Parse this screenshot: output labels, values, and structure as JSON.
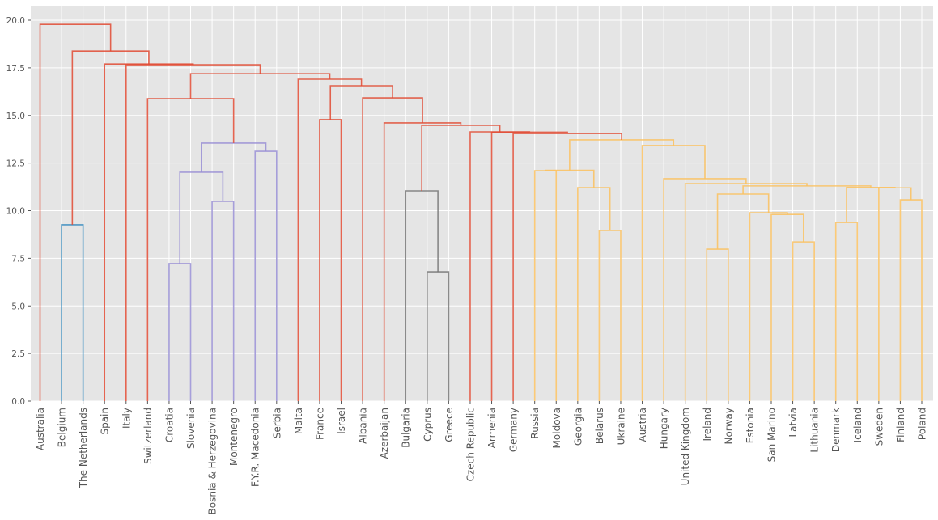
{
  "chart_data": {
    "type": "dendrogram",
    "title": "",
    "xlabel": "",
    "ylabel": "",
    "ylim": [
      0,
      20.7
    ],
    "yticks": [
      "0.0",
      "2.5",
      "5.0",
      "7.5",
      "10.0",
      "12.5",
      "15.0",
      "17.5",
      "20.0"
    ],
    "ytick_values": [
      0,
      2.5,
      5,
      7.5,
      10,
      12.5,
      15,
      17.5,
      20
    ],
    "grid": true,
    "background": "#e5e5e5",
    "colors": {
      "red": "#e24a33",
      "blue": "#348abd",
      "purple": "#988ed5",
      "gray": "#777777",
      "yellow": "#fbc15e"
    },
    "leaves": [
      "Australia",
      "Belgium",
      "The Netherlands",
      "Spain",
      "Italy",
      "Switzerland",
      "Croatia",
      "Slovenia",
      "Bosnia & Herzegovina",
      "Montenegro",
      "F.Y.R. Macedonia",
      "Serbia",
      "Malta",
      "France",
      "Israel",
      "Albania",
      "Azerbaijan",
      "Bulgaria",
      "Cyprus",
      "Greece",
      "Czech Republic",
      "Armenia",
      "Germany",
      "Russia",
      "Moldova",
      "Georgia",
      "Belarus",
      "Ukraine",
      "Austria",
      "Hungary",
      "United Kingdom",
      "Ireland",
      "Norway",
      "Estonia",
      "San Marino",
      "Latvia",
      "Lithuania",
      "Denmark",
      "Iceland",
      "Sweden",
      "Finland",
      "Poland"
    ],
    "merges": [
      {
        "id": "m1",
        "left": "L1",
        "right": "L2",
        "height": 9.26,
        "color": "blue"
      },
      {
        "id": "m2",
        "left": "L6",
        "right": "L7",
        "height": 7.22,
        "color": "purple"
      },
      {
        "id": "m3",
        "left": "L8",
        "right": "L9",
        "height": 10.49,
        "color": "purple"
      },
      {
        "id": "m4",
        "left": "m2",
        "right": "m3",
        "height": 12.02,
        "color": "purple"
      },
      {
        "id": "m5",
        "left": "L10",
        "right": "L11",
        "height": 13.12,
        "color": "purple"
      },
      {
        "id": "m6",
        "left": "m4",
        "right": "m5",
        "height": 13.55,
        "color": "purple"
      },
      {
        "id": "m7",
        "left": "L5",
        "right": "m6",
        "height": 15.88,
        "color": "red"
      },
      {
        "id": "m8",
        "left": "L13",
        "right": "L14",
        "height": 14.78,
        "color": "red"
      },
      {
        "id": "m9",
        "left": "L18",
        "right": "L19",
        "height": 6.79,
        "color": "gray"
      },
      {
        "id": "m10",
        "left": "L17",
        "right": "m9",
        "height": 11.04,
        "color": "gray"
      },
      {
        "id": "m11",
        "left": "L26",
        "right": "L27",
        "height": 8.96,
        "color": "yellow"
      },
      {
        "id": "m12",
        "left": "L25",
        "right": "m11",
        "height": 11.21,
        "color": "yellow"
      },
      {
        "id": "m13",
        "left": "L23",
        "right": "L24",
        "height": 12.1,
        "color": "yellow"
      },
      {
        "id": "m14",
        "left": "m13",
        "right": "m12",
        "height": 12.12,
        "color": "yellow"
      },
      {
        "id": "m15",
        "left": "L31",
        "right": "L32",
        "height": 7.98,
        "color": "yellow"
      },
      {
        "id": "m16",
        "left": "L35",
        "right": "L36",
        "height": 8.36,
        "color": "yellow"
      },
      {
        "id": "m17",
        "left": "L34",
        "right": "m16",
        "height": 9.8,
        "color": "yellow"
      },
      {
        "id": "m18",
        "left": "L33",
        "right": "m17",
        "height": 9.89,
        "color": "yellow"
      },
      {
        "id": "m19",
        "left": "m15",
        "right": "m18",
        "height": 10.87,
        "color": "yellow"
      },
      {
        "id": "m20",
        "left": "L37",
        "right": "L38",
        "height": 9.38,
        "color": "yellow"
      },
      {
        "id": "m21",
        "left": "L40",
        "right": "L41",
        "height": 10.57,
        "color": "yellow"
      },
      {
        "id": "m22",
        "left": "L39",
        "right": "m21",
        "height": 11.2,
        "color": "yellow"
      },
      {
        "id": "m23",
        "left": "m20",
        "right": "m22",
        "height": 11.22,
        "color": "yellow"
      },
      {
        "id": "m24",
        "left": "m19",
        "right": "m23",
        "height": 11.3,
        "color": "yellow"
      },
      {
        "id": "m25",
        "left": "L30",
        "right": "m24",
        "height": 11.42,
        "color": "yellow"
      },
      {
        "id": "m26",
        "left": "L29",
        "right": "m25",
        "height": 11.68,
        "color": "yellow"
      },
      {
        "id": "m27",
        "left": "L28",
        "right": "m26",
        "height": 13.42,
        "color": "yellow"
      },
      {
        "id": "m28",
        "left": "m14",
        "right": "m27",
        "height": 13.72,
        "color": "yellow"
      },
      {
        "id": "m29",
        "left": "L22",
        "right": "m28",
        "height": 14.05,
        "color": "red"
      },
      {
        "id": "m30",
        "left": "L21",
        "right": "m29",
        "height": 14.12,
        "color": "red"
      },
      {
        "id": "m31",
        "left": "L20",
        "right": "m30",
        "height": 14.14,
        "color": "red"
      },
      {
        "id": "m32",
        "left": "m10",
        "right": "m31",
        "height": 14.48,
        "color": "red"
      },
      {
        "id": "m33",
        "left": "L16",
        "right": "m32",
        "height": 14.61,
        "color": "red"
      },
      {
        "id": "m34",
        "left": "L15",
        "right": "m33",
        "height": 15.92,
        "color": "red"
      },
      {
        "id": "m35",
        "left": "m8",
        "right": "m34",
        "height": 16.56,
        "color": "red"
      },
      {
        "id": "m36",
        "left": "L12",
        "right": "m35",
        "height": 16.9,
        "color": "red"
      },
      {
        "id": "m37",
        "left": "m7",
        "right": "m36",
        "height": 17.19,
        "color": "red"
      },
      {
        "id": "m38",
        "left": "L4",
        "right": "m37",
        "height": 17.66,
        "color": "red"
      },
      {
        "id": "m39",
        "left": "L3",
        "right": "m38",
        "height": 17.7,
        "color": "red"
      },
      {
        "id": "m40",
        "left": "m1",
        "right": "m39",
        "height": 18.38,
        "color": "red"
      },
      {
        "id": "m41",
        "left": "L0",
        "right": "m40",
        "height": 19.78,
        "color": "red"
      }
    ]
  }
}
